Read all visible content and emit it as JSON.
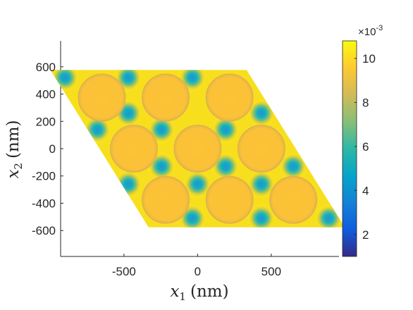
{
  "chart_data": {
    "type": "heatmap",
    "title": "",
    "xlabel": "x",
    "xlabel_sub": "1",
    "xlabel_unit": "(nm)",
    "ylabel": "x",
    "ylabel_sub": "2",
    "ylabel_unit": "(nm)",
    "xlim": [
      -930,
      960
    ],
    "ylim": [
      -790,
      790
    ],
    "x_ticks": [
      -500,
      0,
      500
    ],
    "x_tick_labels": [
      "-500",
      "0",
      "500"
    ],
    "y_ticks": [
      600,
      400,
      200,
      0,
      -200,
      -400,
      -600
    ],
    "y_tick_labels": [
      "600",
      "400",
      "200",
      "0",
      "-200",
      "-400",
      "-600"
    ],
    "domain_parallelogram": [
      [
        -1000,
        577
      ],
      [
        333,
        577
      ],
      [
        1000,
        -577
      ],
      [
        -333,
        -577
      ]
    ],
    "lattice": {
      "basis_a1": [
        433,
        0
      ],
      "basis_a2": [
        216.5,
        375
      ],
      "rod_radius": 160,
      "rods": [
        [
          -650,
          375
        ],
        [
          -217,
          375
        ],
        [
          217,
          375
        ],
        [
          -433,
          0
        ],
        [
          0,
          0
        ],
        [
          433,
          0
        ],
        [
          -217,
          -375
        ],
        [
          217,
          -375
        ],
        [
          650,
          -375
        ]
      ],
      "hotspots": [
        [
          -900,
          520
        ],
        [
          -470,
          520
        ],
        [
          -35,
          520
        ],
        [
          -470,
          260
        ],
        [
          433,
          260
        ],
        [
          -680,
          140
        ],
        [
          -245,
          140
        ],
        [
          190,
          140
        ],
        [
          -245,
          -130
        ],
        [
          190,
          -130
        ],
        [
          650,
          -130
        ],
        [
          -470,
          -260
        ],
        [
          0,
          -260
        ],
        [
          433,
          -260
        ],
        [
          -35,
          -510
        ],
        [
          433,
          -510
        ],
        [
          890,
          -510
        ]
      ]
    },
    "colorbar": {
      "min": 1.0,
      "max": 10.8,
      "ticks": [
        2,
        4,
        6,
        8,
        10
      ],
      "tick_labels": [
        "2",
        "4",
        "6",
        "8",
        "10"
      ],
      "multiplier": "×10",
      "exponent": "-3",
      "colormap": "parula",
      "colors": [
        "#352a87",
        "#0f5cdd",
        "#1481d6",
        "#06a4ca",
        "#2eb7a4",
        "#87bf77",
        "#d1bb59",
        "#fec832",
        "#f9fb0e"
      ]
    },
    "legend": "none",
    "grid": false
  }
}
